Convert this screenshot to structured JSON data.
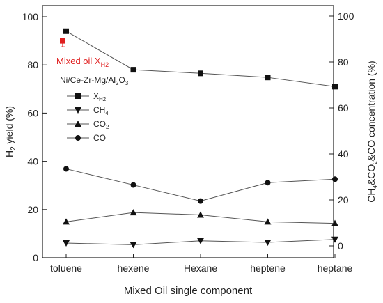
{
  "chart_data": {
    "type": "line",
    "categories": [
      "toluene",
      "hexene",
      "Hexane",
      "heptene",
      "heptane"
    ],
    "xlabel": "Mixed Oil single component",
    "ylabel_left": {
      "base": "H",
      "sub": "2",
      "rest": " yield (%)"
    },
    "ylabel_right": "CH4&CO2&CO concentration (%)",
    "ylim_left": [
      0,
      100
    ],
    "ylim_right": [
      0,
      100
    ],
    "yticks": [
      0,
      20,
      40,
      60,
      80,
      100
    ],
    "legend_title": "Ni/Ce-Zr-Mg/Al2O3",
    "legend_position": "upper-left",
    "series": [
      {
        "name": "XH2",
        "axis": "left",
        "marker": "square",
        "values": [
          94,
          78,
          76.5,
          74.8,
          71
        ]
      },
      {
        "name": "CH4",
        "axis": "right",
        "marker": "triangle-down",
        "values": [
          1.2,
          0.5,
          2.2,
          1.5,
          2.8
        ]
      },
      {
        "name": "CO2",
        "axis": "right",
        "marker": "triangle-up",
        "values": [
          10.5,
          14.5,
          13.5,
          10.5,
          9.8
        ]
      },
      {
        "name": "CO",
        "axis": "right",
        "marker": "circle",
        "values": [
          33.5,
          26.5,
          19.5,
          27.5,
          29
        ]
      }
    ],
    "annotation": {
      "label": "Mixed oil X",
      "label_sub": "H2",
      "point_category": "toluene",
      "point_value": 90,
      "error_low": 87.5,
      "error_high": 91,
      "color": "#e02020"
    }
  }
}
